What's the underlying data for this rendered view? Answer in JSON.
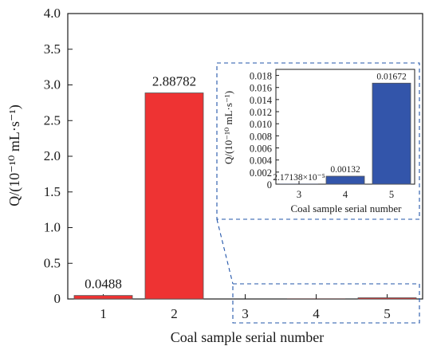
{
  "chart_data": [
    {
      "id": "main",
      "type": "bar",
      "categories": [
        "1",
        "2",
        "3",
        "4",
        "5"
      ],
      "values": [
        0.0488,
        2.88782,
        2.17138e-05,
        0.00132,
        0.01672
      ],
      "bar_labels": [
        "0.0488",
        "2.88782",
        "",
        "",
        ""
      ],
      "bar_color": "#ee3333",
      "xlabel": "Coal sample serial number",
      "ylabel_text": "Q/(10⁻¹⁰ mL·s⁻¹)",
      "ylim": [
        0,
        4.0
      ],
      "yticks": [
        "0",
        "0.5",
        "1.0",
        "1.5",
        "2.0",
        "2.5",
        "3.0",
        "3.5",
        "4.0"
      ],
      "grid": false
    },
    {
      "id": "inset",
      "type": "bar",
      "categories": [
        "3",
        "4",
        "5"
      ],
      "values": [
        2.17138e-05,
        0.00132,
        0.01672
      ],
      "bar_labels": [
        "2.17138×10⁻⁵",
        "0.00132",
        "0.01672"
      ],
      "bar_color": "#3355aa",
      "xlabel": "Coal sample serial number",
      "ylabel_text": "Q/(10⁻¹⁰ mL·s⁻¹)",
      "ylim": [
        0,
        0.019
      ],
      "yticks": [
        "0",
        "0.002",
        "0.004",
        "0.006",
        "0.008",
        "0.010",
        "0.012",
        "0.014",
        "0.016",
        "0.018"
      ],
      "grid": false
    }
  ],
  "colors": {
    "dashed_box": "#2255aa",
    "axis": "#1a1a1a"
  }
}
